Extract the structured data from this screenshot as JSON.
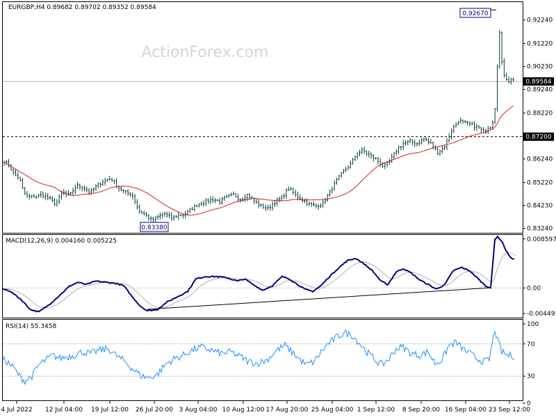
{
  "watermark": "ActionForex.com",
  "chart_data": [
    {
      "type": "candlestick",
      "header": "EURGBP,H4  0.89682 0.89702 0.89352 0.89584",
      "y_ticks": [
        "0.92240",
        "0.91220",
        "0.90230",
        "0.89240",
        "0.88220",
        "0.86240",
        "0.85220",
        "0.84230",
        "0.83240"
      ],
      "ylim": [
        0.8305,
        0.9301
      ],
      "current_price": 0.89584,
      "current_label": "0.89584",
      "support_level": 0.872,
      "support_label": "0.87200",
      "high_annotation": {
        "value": 0.9267,
        "label": "0.92670"
      },
      "low_annotation": {
        "value": 0.8338,
        "label": "0.83380"
      },
      "moving_average_color": "#d41e1e",
      "price_color": "#003a3a"
    },
    {
      "type": "line",
      "header": "MACD(12,26,9) 0.004160 0.005225",
      "y_ticks": [
        "0.008597",
        "0.00",
        "-0.004491"
      ],
      "ylim": [
        -0.0052,
        0.0093
      ],
      "macd_color": "#000080",
      "signal_color": "#b0b0b0"
    },
    {
      "type": "line",
      "header": "RSI(14) 55.3458",
      "y_ticks": [
        "100",
        "70",
        "30",
        "0"
      ],
      "ylim": [
        0,
        100
      ],
      "levels": [
        70,
        30
      ],
      "line_color": "#1e90ff"
    }
  ],
  "x_labels": [
    "4 Jul 2022",
    "12 Jul 04:00",
    "19 Jul 12:00",
    "26 Jul 20:00",
    "3 Aug 04:00",
    "10 Aug 12:00",
    "17 Aug 20:00",
    "25 Aug 04:00",
    "1 Sep 12:00",
    "8 Sep 20:00",
    "16 Sep 04:00",
    "23 Sep 12:00"
  ]
}
